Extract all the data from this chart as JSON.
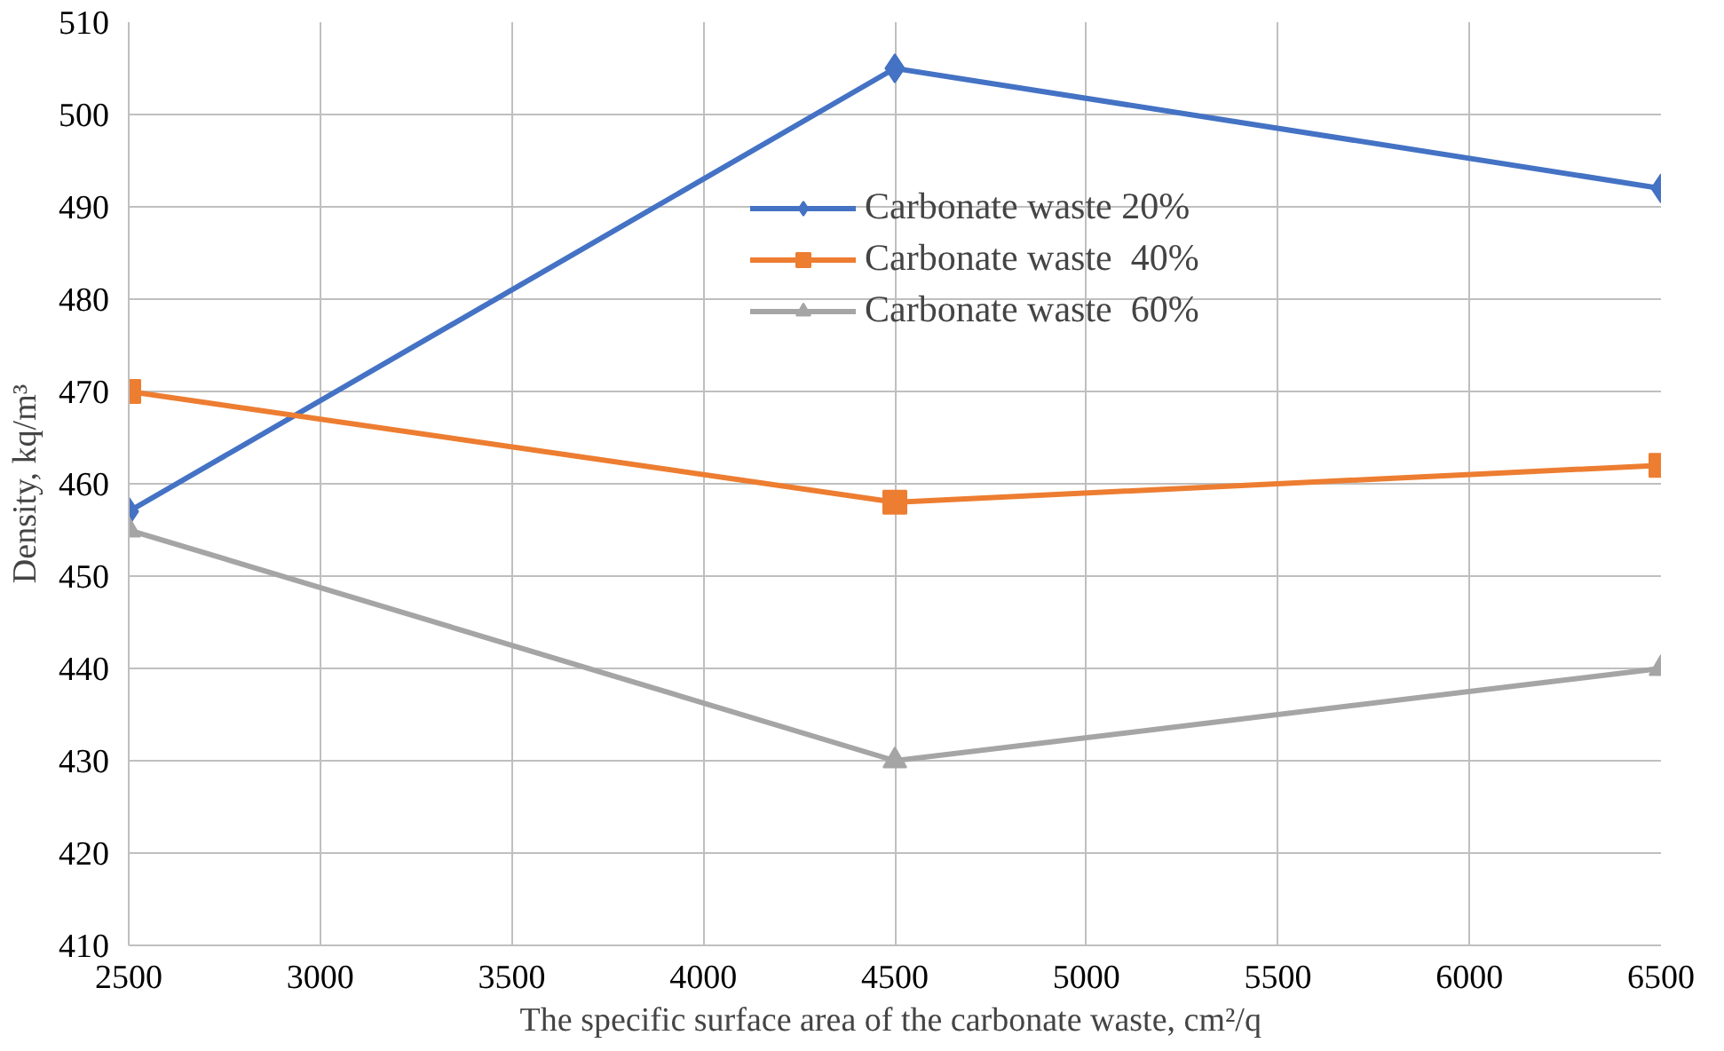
{
  "chart_data": {
    "type": "line",
    "xlabel": "The specific surface area of the carbonate waste,  cm²/q",
    "ylabel": "Density, kq/m³",
    "x": [
      2500,
      4500,
      6500
    ],
    "series": [
      {
        "name": "Carbonate waste 20%",
        "color": "#4472c4",
        "values": [
          457,
          505,
          492
        ],
        "marker": "diamond"
      },
      {
        "name": "Carbonate waste  40%",
        "color": "#ed7d31",
        "values": [
          470,
          458,
          462
        ],
        "marker": "square"
      },
      {
        "name": "Carbonate waste  60%",
        "color": "#a5a5a5",
        "values": [
          455,
          430,
          440
        ],
        "marker": "triangle"
      }
    ],
    "xlim": [
      2500,
      6500
    ],
    "xticks": [
      2500,
      3000,
      3500,
      4000,
      4500,
      5000,
      5500,
      6000,
      6500
    ],
    "ylim": [
      410,
      510
    ],
    "yticks": [
      410,
      420,
      430,
      440,
      450,
      460,
      470,
      480,
      490,
      500,
      510
    ],
    "grid": true,
    "legend": "top right",
    "line_style": "solid"
  }
}
